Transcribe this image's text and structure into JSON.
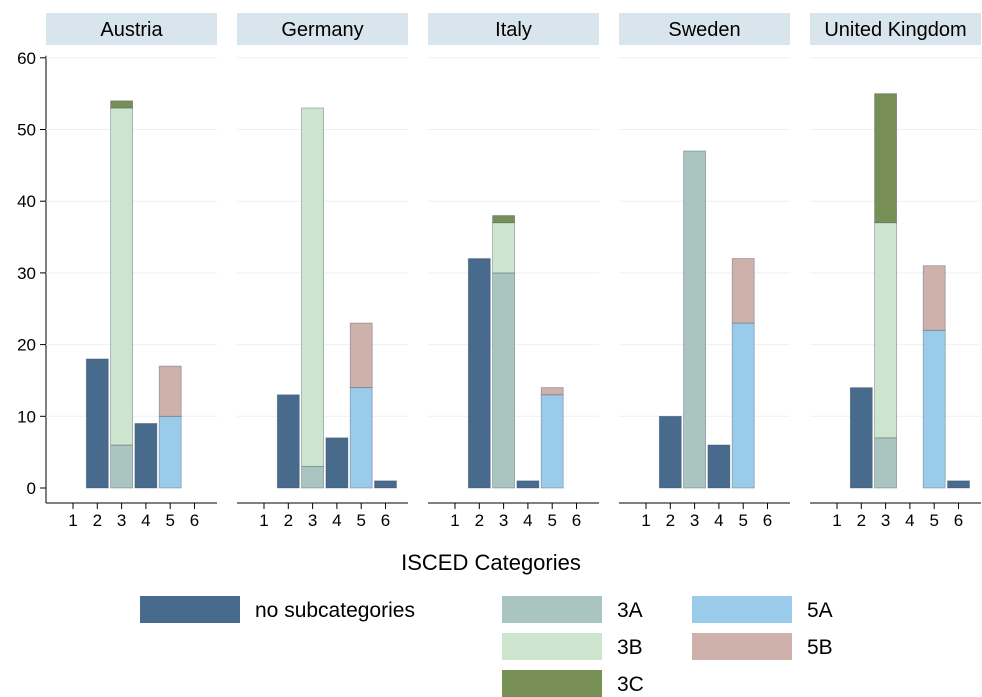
{
  "chart_data": {
    "type": "bar",
    "stacked": true,
    "xlabel": "ISCED Categories",
    "ylabel": "",
    "ylim": [
      0,
      60
    ],
    "yticks": [
      0,
      10,
      20,
      30,
      40,
      50,
      60
    ],
    "categories": [
      "1",
      "2",
      "3",
      "4",
      "5",
      "6"
    ],
    "grid": true,
    "legend_position": "bottom",
    "series_meta": [
      {
        "key": "none",
        "name": "no subcategories",
        "color": "#486a8c"
      },
      {
        "key": "3A",
        "name": "3A",
        "color": "#aac4bf"
      },
      {
        "key": "3B",
        "name": "3B",
        "color": "#cde4cf"
      },
      {
        "key": "3C",
        "name": "3C",
        "color": "#778f55"
      },
      {
        "key": "5A",
        "name": "5A",
        "color": "#9bcbea"
      },
      {
        "key": "5B",
        "name": "5B",
        "color": "#cdb1aa"
      }
    ],
    "panels": [
      {
        "title": "Austria",
        "bars": [
          {
            "category": "2",
            "segments": [
              {
                "series": "none",
                "value": 18
              }
            ]
          },
          {
            "category": "3",
            "segments": [
              {
                "series": "3A",
                "value": 6
              },
              {
                "series": "3B",
                "value": 47
              },
              {
                "series": "3C",
                "value": 1
              }
            ]
          },
          {
            "category": "4",
            "segments": [
              {
                "series": "none",
                "value": 9
              }
            ]
          },
          {
            "category": "5",
            "segments": [
              {
                "series": "5A",
                "value": 10
              },
              {
                "series": "5B",
                "value": 7
              }
            ]
          }
        ]
      },
      {
        "title": "Germany",
        "bars": [
          {
            "category": "2",
            "segments": [
              {
                "series": "none",
                "value": 13
              }
            ]
          },
          {
            "category": "3",
            "segments": [
              {
                "series": "3A",
                "value": 3
              },
              {
                "series": "3B",
                "value": 50
              }
            ]
          },
          {
            "category": "4",
            "segments": [
              {
                "series": "none",
                "value": 7
              }
            ]
          },
          {
            "category": "5",
            "segments": [
              {
                "series": "5A",
                "value": 14
              },
              {
                "series": "5B",
                "value": 9
              }
            ]
          },
          {
            "category": "6",
            "segments": [
              {
                "series": "none",
                "value": 1
              }
            ]
          }
        ]
      },
      {
        "title": "Italy",
        "bars": [
          {
            "category": "2",
            "segments": [
              {
                "series": "none",
                "value": 32
              }
            ]
          },
          {
            "category": "3",
            "segments": [
              {
                "series": "3A",
                "value": 30
              },
              {
                "series": "3B",
                "value": 7
              },
              {
                "series": "3C",
                "value": 1
              }
            ]
          },
          {
            "category": "4",
            "segments": [
              {
                "series": "none",
                "value": 1
              }
            ]
          },
          {
            "category": "5",
            "segments": [
              {
                "series": "5A",
                "value": 13
              },
              {
                "series": "5B",
                "value": 1
              }
            ]
          }
        ]
      },
      {
        "title": "Sweden",
        "bars": [
          {
            "category": "2",
            "segments": [
              {
                "series": "none",
                "value": 10
              }
            ]
          },
          {
            "category": "3",
            "segments": [
              {
                "series": "3A",
                "value": 47
              }
            ]
          },
          {
            "category": "4",
            "segments": [
              {
                "series": "none",
                "value": 6
              }
            ]
          },
          {
            "category": "5",
            "segments": [
              {
                "series": "5A",
                "value": 23
              },
              {
                "series": "5B",
                "value": 9
              }
            ]
          }
        ]
      },
      {
        "title": "United Kingdom",
        "bars": [
          {
            "category": "2",
            "segments": [
              {
                "series": "none",
                "value": 14
              }
            ]
          },
          {
            "category": "3",
            "segments": [
              {
                "series": "3A",
                "value": 7
              },
              {
                "series": "3B",
                "value": 30
              },
              {
                "series": "3C",
                "value": 18
              }
            ]
          },
          {
            "category": "5",
            "segments": [
              {
                "series": "5A",
                "value": 22
              },
              {
                "series": "5B",
                "value": 9
              }
            ]
          },
          {
            "category": "6",
            "segments": [
              {
                "series": "none",
                "value": 1
              }
            ]
          }
        ]
      }
    ]
  }
}
